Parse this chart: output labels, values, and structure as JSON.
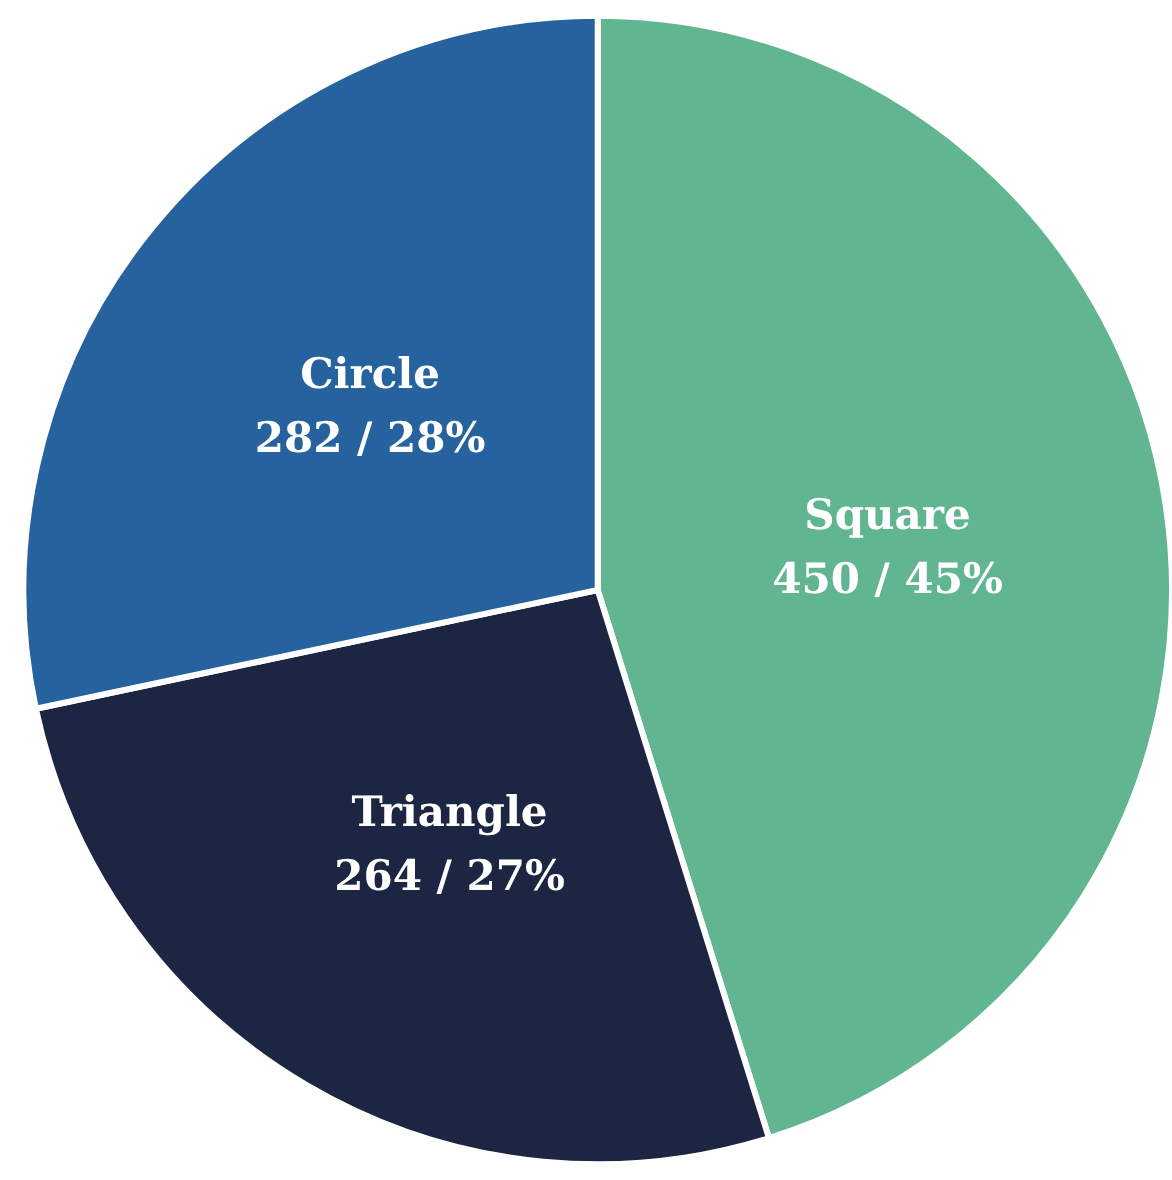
{
  "chart_data": {
    "type": "pie",
    "categories": [
      "Square",
      "Triangle",
      "Circle"
    ],
    "values": [
      450,
      264,
      282
    ],
    "value_labels": [
      "450 / 45%",
      "264 / 27%",
      "282 / 28%"
    ],
    "colors": [
      "#62b591",
      "#1c2541",
      "#26629e"
    ]
  }
}
